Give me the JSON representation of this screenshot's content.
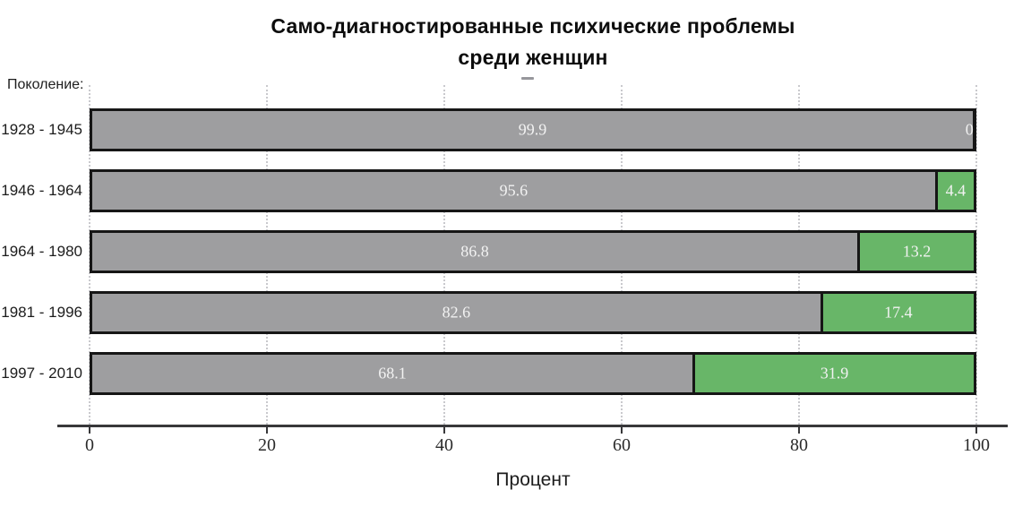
{
  "chart_data": {
    "type": "bar",
    "orientation": "horizontal_stacked",
    "title": "Само-диагностированные психические проблемы среди женщин",
    "title_lines": [
      "Само-диагностированные психические проблемы",
      "среди женщин"
    ],
    "group_axis_label": "Поколение:",
    "categories": [
      "1928 - 1945",
      "1946 - 1964",
      "1964 - 1980",
      "1981 - 1996",
      "1997 - 2010"
    ],
    "series": [
      {
        "name": "gray",
        "color": "#9e9ea0",
        "values": [
          99.9,
          95.6,
          86.8,
          82.6,
          68.1
        ]
      },
      {
        "name": "green",
        "color": "#68b668",
        "values": [
          0.1,
          4.4,
          13.2,
          17.4,
          31.9
        ]
      }
    ],
    "xlabel": "Процент",
    "xlim": [
      0,
      100
    ],
    "xticks": [
      0,
      20,
      40,
      60,
      80,
      100
    ],
    "grid": "dotted vertical gridlines at x ticks",
    "legend_position": "cropped (only a small dash remnant visible at top center)",
    "bar_value_label_color": "#f2f2f2",
    "bar_border_color": "#161616"
  }
}
